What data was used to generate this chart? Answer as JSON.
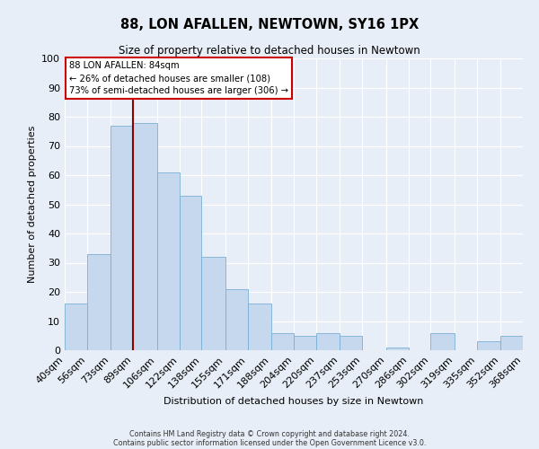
{
  "title": "88, LON AFALLEN, NEWTOWN, SY16 1PX",
  "subtitle": "Size of property relative to detached houses in Newtown",
  "xlabel": "Distribution of detached houses by size in Newtown",
  "ylabel": "Number of detached properties",
  "bar_color": "#c5d8ed",
  "bar_edge_color": "#7aafd4",
  "background_color": "#e8eef7",
  "grid_color": "#ffffff",
  "vline_x": 89,
  "vline_color": "#8b0000",
  "annotation_title": "88 LON AFALLEN: 84sqm",
  "annotation_line1": "← 26% of detached houses are smaller (108)",
  "annotation_line2": "73% of semi-detached houses are larger (306) →",
  "annotation_box_color": "#ffffff",
  "annotation_edge_color": "#cc0000",
  "bin_edges": [
    40,
    56,
    73,
    89,
    106,
    122,
    138,
    155,
    171,
    188,
    204,
    220,
    237,
    253,
    270,
    286,
    302,
    319,
    335,
    352,
    368
  ],
  "bin_counts": [
    16,
    33,
    77,
    78,
    61,
    53,
    32,
    21,
    16,
    6,
    5,
    6,
    5,
    0,
    1,
    0,
    6,
    0,
    3,
    5
  ],
  "ylim": [
    0,
    100
  ],
  "yticks": [
    0,
    10,
    20,
    30,
    40,
    50,
    60,
    70,
    80,
    90,
    100
  ],
  "footnote1": "Contains HM Land Registry data © Crown copyright and database right 2024.",
  "footnote2": "Contains public sector information licensed under the Open Government Licence v3.0."
}
